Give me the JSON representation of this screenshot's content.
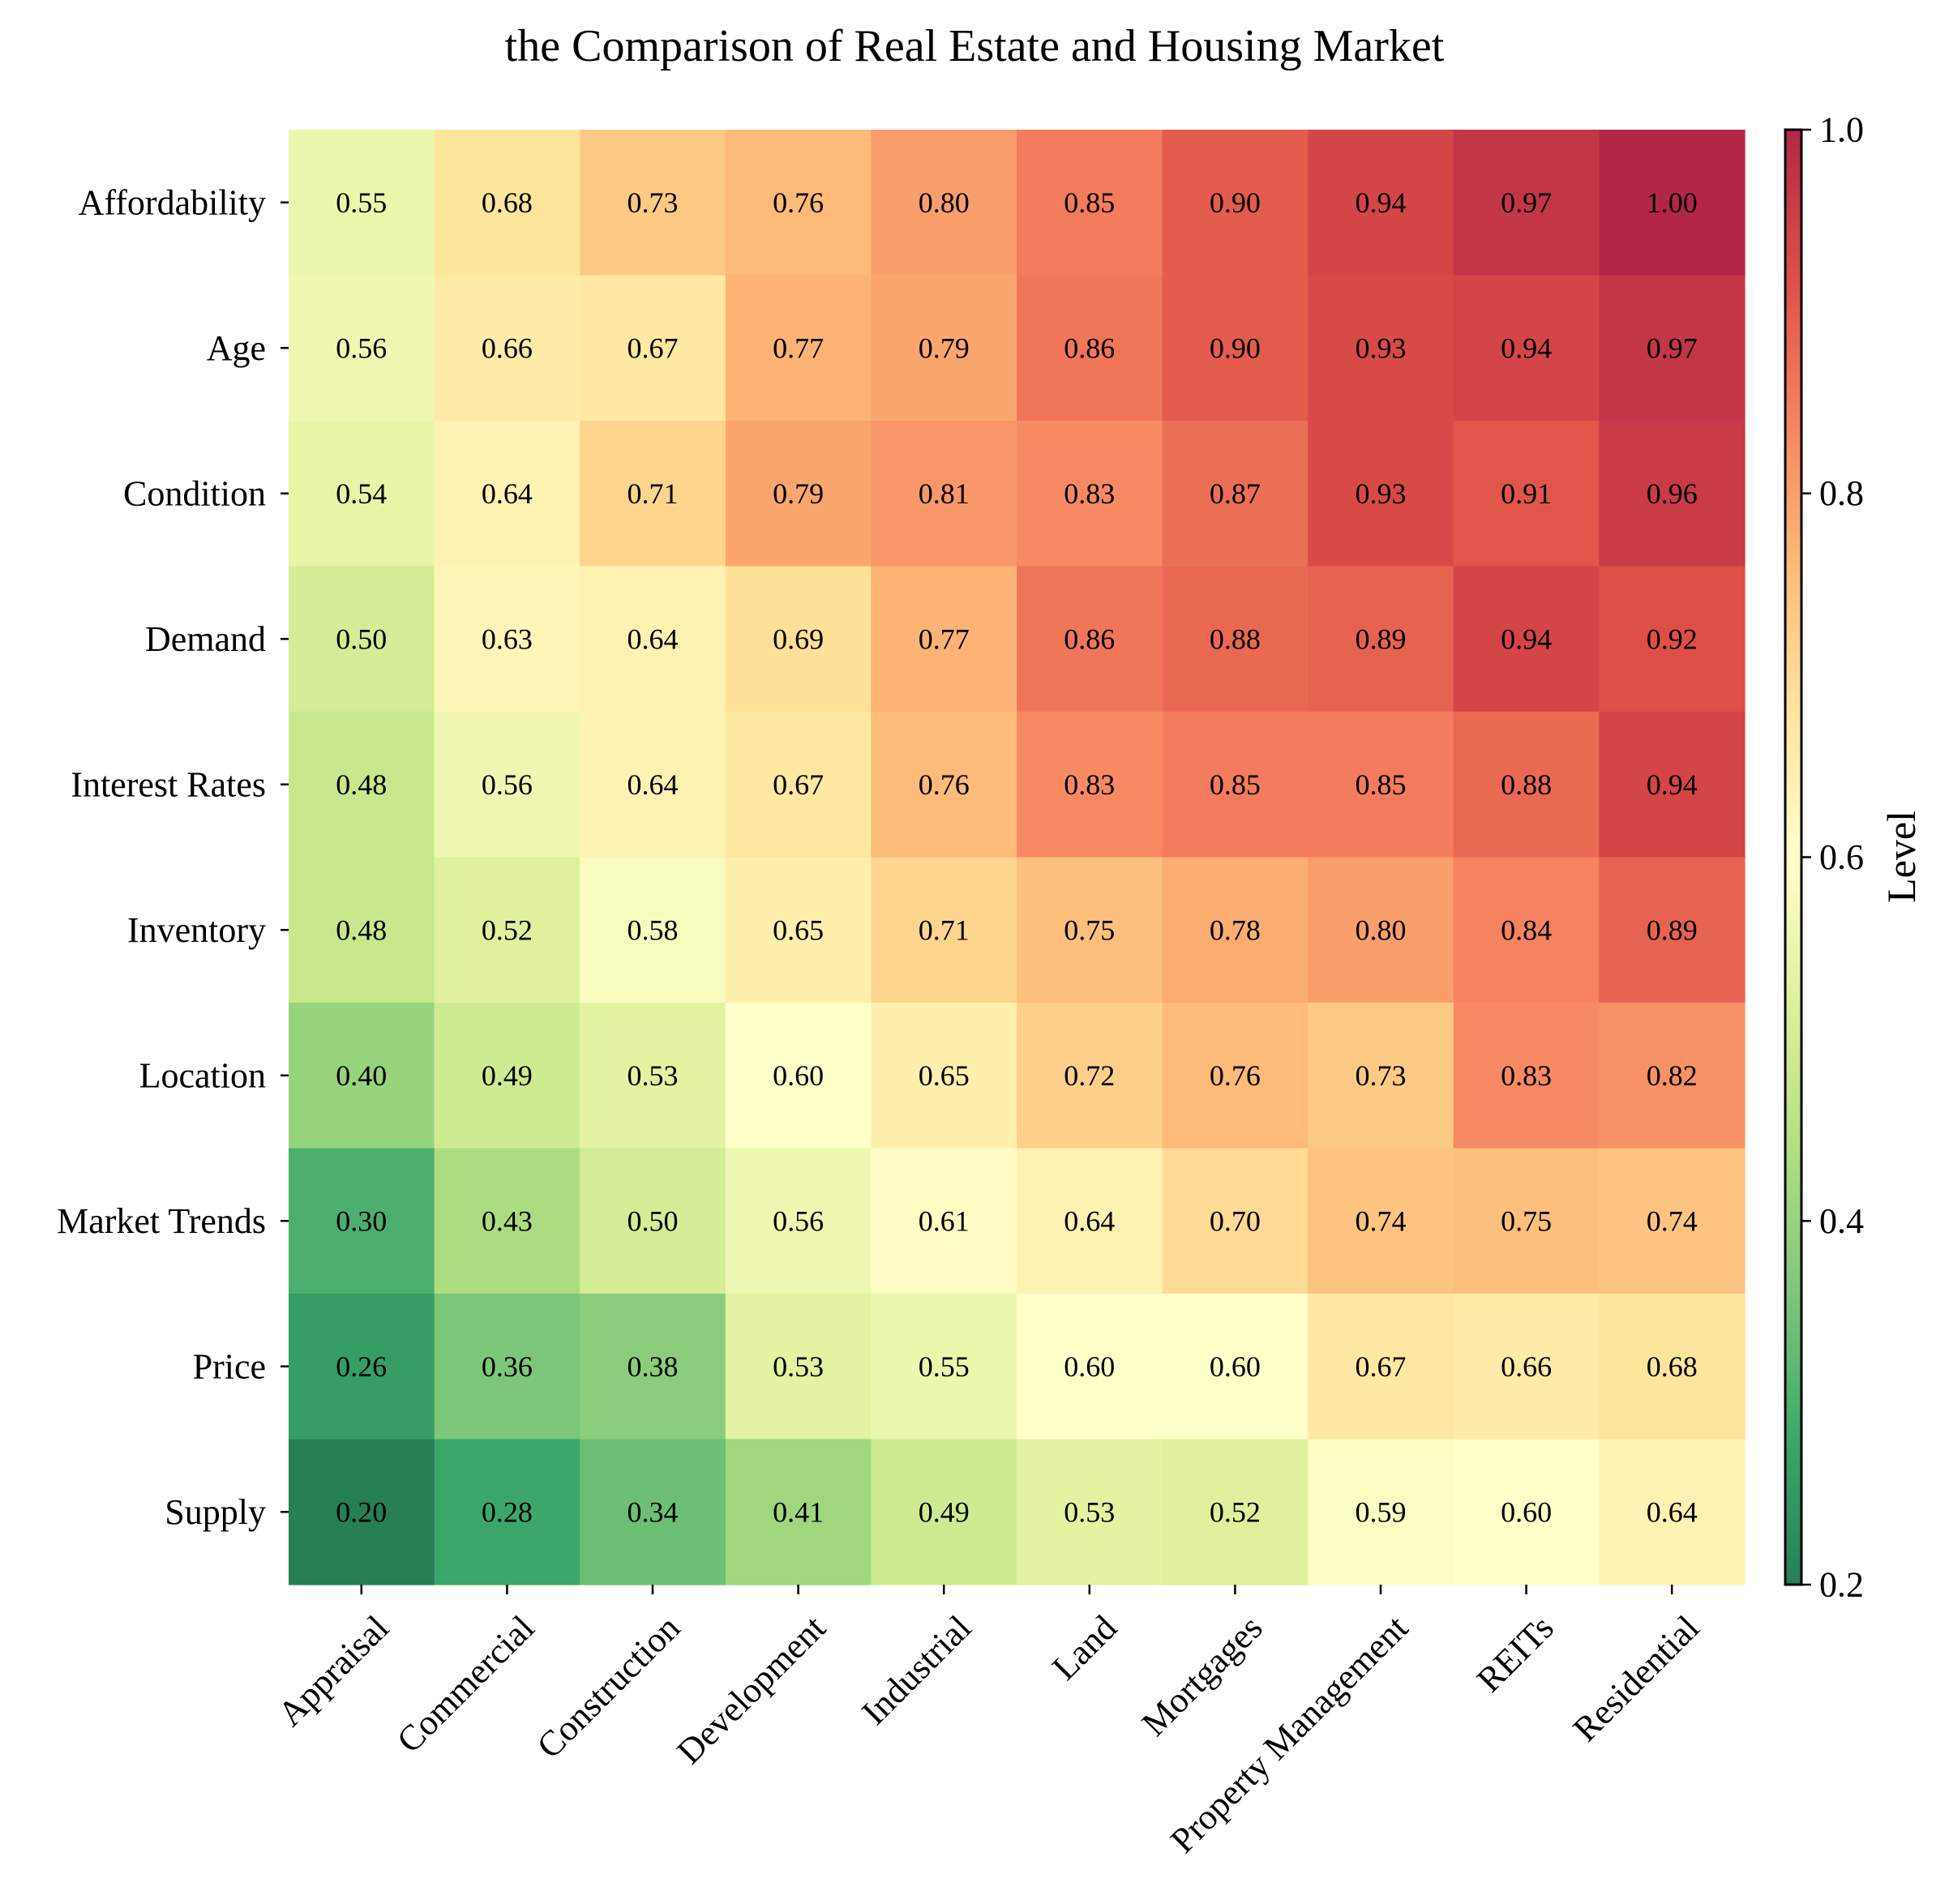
{
  "chart_data": {
    "type": "heatmap",
    "title": "the Comparison of Real Estate and Housing Market",
    "rows": [
      "Affordability",
      "Age",
      "Condition",
      "Demand",
      "Interest Rates",
      "Inventory",
      "Location",
      "Market Trends",
      "Price",
      "Supply"
    ],
    "columns": [
      "Appraisal",
      "Commercial",
      "Construction",
      "Development",
      "Industrial",
      "Land",
      "Mortgages",
      "Property Management",
      "REITs",
      "Residential"
    ],
    "values": [
      [
        0.55,
        0.68,
        0.73,
        0.76,
        0.8,
        0.85,
        0.9,
        0.94,
        0.97,
        1.0
      ],
      [
        0.56,
        0.66,
        0.67,
        0.77,
        0.79,
        0.86,
        0.9,
        0.93,
        0.94,
        0.97
      ],
      [
        0.54,
        0.64,
        0.71,
        0.79,
        0.81,
        0.83,
        0.87,
        0.93,
        0.91,
        0.96
      ],
      [
        0.5,
        0.63,
        0.64,
        0.69,
        0.77,
        0.86,
        0.88,
        0.89,
        0.94,
        0.92
      ],
      [
        0.48,
        0.56,
        0.64,
        0.67,
        0.76,
        0.83,
        0.85,
        0.85,
        0.88,
        0.94
      ],
      [
        0.48,
        0.52,
        0.58,
        0.65,
        0.71,
        0.75,
        0.78,
        0.8,
        0.84,
        0.89
      ],
      [
        0.4,
        0.49,
        0.53,
        0.6,
        0.65,
        0.72,
        0.76,
        0.73,
        0.83,
        0.82
      ],
      [
        0.3,
        0.43,
        0.5,
        0.56,
        0.61,
        0.64,
        0.7,
        0.74,
        0.75,
        0.74
      ],
      [
        0.26,
        0.36,
        0.38,
        0.53,
        0.55,
        0.6,
        0.6,
        0.67,
        0.66,
        0.68
      ],
      [
        0.2,
        0.28,
        0.34,
        0.41,
        0.49,
        0.53,
        0.52,
        0.59,
        0.6,
        0.64
      ]
    ],
    "value_format_decimals": 2,
    "colorbar": {
      "label": "Level",
      "range": [
        0.2,
        1.0
      ],
      "ticks": [
        "0.2",
        "0.4",
        "0.6",
        "0.8",
        "1.0"
      ],
      "colormap": "RdYlGn_r",
      "alpha": 0.85
    },
    "colormap_stops": [
      [
        "0.0",
        "#006837"
      ],
      [
        "0.1",
        "#1a9850"
      ],
      [
        "0.2",
        "#66bd63"
      ],
      [
        "0.3",
        "#a6d96a"
      ],
      [
        "0.4",
        "#d9ef8b"
      ],
      [
        "0.5",
        "#ffffbf"
      ],
      [
        "0.6",
        "#fee08b"
      ],
      [
        "0.7",
        "#fdae61"
      ],
      [
        "0.8",
        "#f46d43"
      ],
      [
        "0.9",
        "#d73027"
      ],
      [
        "1.0",
        "#a50026"
      ]
    ],
    "grid": false,
    "x_tick_rotation": "45deg, right-aligned"
  }
}
